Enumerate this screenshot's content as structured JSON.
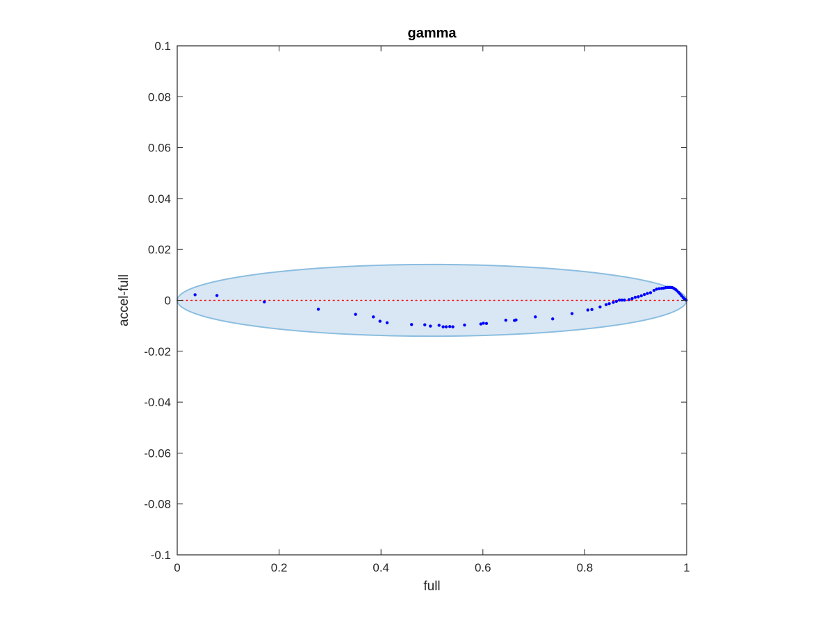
{
  "chart_data": {
    "type": "scatter",
    "title": "gamma",
    "xlabel": "full",
    "ylabel": "accel-full",
    "xlim": [
      0,
      1
    ],
    "ylim": [
      -0.1,
      0.1
    ],
    "x_ticks": [
      0,
      0.2,
      0.4,
      0.6,
      0.8,
      1
    ],
    "x_tick_labels": [
      "0",
      "0.2",
      "0.4",
      "0.6",
      "0.8",
      "1"
    ],
    "y_ticks": [
      0.1,
      0.08,
      0.06,
      0.04,
      0.02,
      0,
      -0.02,
      -0.04,
      -0.06,
      -0.08,
      -0.1
    ],
    "y_tick_labels": [
      "0.1",
      "0.08",
      "0.06",
      "0.04",
      "0.02",
      "0",
      "-0.02",
      "-0.04",
      "-0.06",
      "-0.08",
      "-0.1"
    ],
    "grid": false,
    "box": true,
    "ellipse": {
      "center_x": 0.5,
      "center_y": 0,
      "radius_x": 0.5,
      "radius_y": 0.0141,
      "fill_color": "#d8e7f3",
      "edge_color": "#8bbde0"
    },
    "reference_line": {
      "y": 0,
      "x_range": [
        0,
        1
      ],
      "style": "dotted",
      "color": "#ff0000"
    },
    "points_color": "#0000ff",
    "points": [
      {
        "x": 0.035,
        "y": 0.0022
      },
      {
        "x": 0.078,
        "y": 0.0019
      },
      {
        "x": 0.171,
        "y": -0.0006
      },
      {
        "x": 0.277,
        "y": -0.0035
      },
      {
        "x": 0.35,
        "y": -0.0055
      },
      {
        "x": 0.385,
        "y": -0.0065
      },
      {
        "x": 0.398,
        "y": -0.0082
      },
      {
        "x": 0.412,
        "y": -0.0088
      },
      {
        "x": 0.46,
        "y": -0.0095
      },
      {
        "x": 0.486,
        "y": -0.0096
      },
      {
        "x": 0.497,
        "y": -0.0101
      },
      {
        "x": 0.514,
        "y": -0.0098
      },
      {
        "x": 0.522,
        "y": -0.0104
      },
      {
        "x": 0.528,
        "y": -0.0104
      },
      {
        "x": 0.535,
        "y": -0.0103
      },
      {
        "x": 0.541,
        "y": -0.0104
      },
      {
        "x": 0.564,
        "y": -0.0097
      },
      {
        "x": 0.596,
        "y": -0.0093
      },
      {
        "x": 0.601,
        "y": -0.009
      },
      {
        "x": 0.607,
        "y": -0.0091
      },
      {
        "x": 0.645,
        "y": -0.0078
      },
      {
        "x": 0.662,
        "y": -0.0079
      },
      {
        "x": 0.665,
        "y": -0.0077
      },
      {
        "x": 0.703,
        "y": -0.0065
      },
      {
        "x": 0.737,
        "y": -0.0073
      },
      {
        "x": 0.775,
        "y": -0.0052
      },
      {
        "x": 0.806,
        "y": -0.0038
      },
      {
        "x": 0.814,
        "y": -0.0036
      },
      {
        "x": 0.83,
        "y": -0.0026
      },
      {
        "x": 0.842,
        "y": -0.0017
      },
      {
        "x": 0.848,
        "y": -0.0013
      },
      {
        "x": 0.856,
        "y": -0.0008
      },
      {
        "x": 0.862,
        "y": -0.0004
      },
      {
        "x": 0.868,
        "y": 0.0001
      },
      {
        "x": 0.873,
        "y": 0.0001
      },
      {
        "x": 0.878,
        "y": 0.0001
      },
      {
        "x": 0.887,
        "y": 0.0003
      },
      {
        "x": 0.893,
        "y": 0.0007
      },
      {
        "x": 0.899,
        "y": 0.0012
      },
      {
        "x": 0.905,
        "y": 0.0014
      },
      {
        "x": 0.911,
        "y": 0.0018
      },
      {
        "x": 0.917,
        "y": 0.0023
      },
      {
        "x": 0.923,
        "y": 0.0027
      },
      {
        "x": 0.929,
        "y": 0.003
      },
      {
        "x": 0.936,
        "y": 0.0039
      },
      {
        "x": 0.941,
        "y": 0.0044
      },
      {
        "x": 0.946,
        "y": 0.0046
      },
      {
        "x": 0.951,
        "y": 0.0047
      },
      {
        "x": 0.955,
        "y": 0.0048
      },
      {
        "x": 0.959,
        "y": 0.005
      },
      {
        "x": 0.963,
        "y": 0.0051
      },
      {
        "x": 0.966,
        "y": 0.0051
      },
      {
        "x": 0.969,
        "y": 0.0051
      },
      {
        "x": 0.972,
        "y": 0.005
      },
      {
        "x": 0.975,
        "y": 0.0047
      },
      {
        "x": 0.978,
        "y": 0.0043
      },
      {
        "x": 0.981,
        "y": 0.0038
      },
      {
        "x": 0.984,
        "y": 0.0032
      },
      {
        "x": 0.987,
        "y": 0.0025
      },
      {
        "x": 0.99,
        "y": 0.0018
      },
      {
        "x": 0.993,
        "y": 0.0011
      },
      {
        "x": 0.996,
        "y": 0.0005
      },
      {
        "x": 0.999,
        "y": 0.0001
      }
    ]
  }
}
